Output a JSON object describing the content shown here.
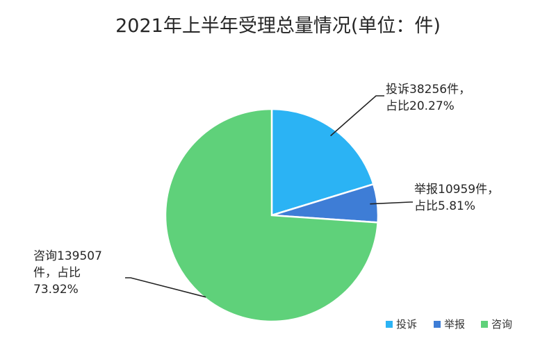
{
  "chart_data": {
    "type": "pie",
    "title": "2021年上半年受理总量情况(单位：件)",
    "slices": [
      {
        "name": "投诉",
        "value": 38256,
        "percent": 20.27,
        "color": "#2BB3F4",
        "label_lines": [
          "投诉38256件，",
          "占比20.27%"
        ]
      },
      {
        "name": "举报",
        "value": 10959,
        "percent": 5.81,
        "color": "#3E7DD6",
        "label_lines": [
          "举报10959件，",
          "占比5.81%"
        ]
      },
      {
        "name": "咨询",
        "value": 139507,
        "percent": 73.92,
        "color": "#5FD17A",
        "label_lines": [
          "咨询139507",
          "件，占比",
          "73.92%"
        ]
      }
    ],
    "legend": {
      "position": "bottom-right",
      "items": [
        "投诉",
        "举报",
        "咨询"
      ]
    }
  }
}
